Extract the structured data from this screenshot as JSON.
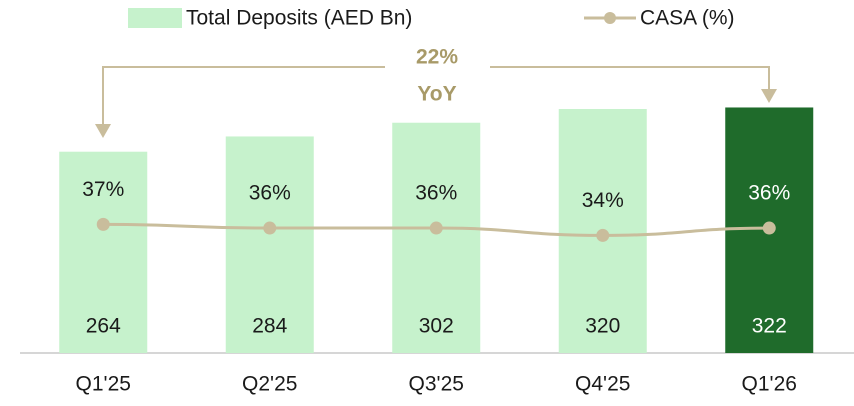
{
  "chart_data": {
    "type": "bar",
    "categories": [
      "Q1'25",
      "Q2'25",
      "Q3'25",
      "Q4'25",
      "Q1'26"
    ],
    "series": [
      {
        "name": "Total Deposits (AED Bn)",
        "type": "bar",
        "color": "#c6f2cc",
        "colors": [
          "#c6f2cc",
          "#c6f2cc",
          "#c6f2cc",
          "#c6f2cc",
          "#1f6b2b"
        ],
        "values": [
          264,
          284,
          302,
          320,
          322
        ]
      },
      {
        "name": "CASA (%)",
        "type": "line",
        "axis": "y2",
        "color": "#c9bd9c",
        "values": [
          37,
          36,
          36,
          34,
          36
        ],
        "value_labels": [
          "37%",
          "36%",
          "36%",
          "34%",
          "36%"
        ]
      }
    ],
    "annotation": [
      "22%",
      "YoY"
    ],
    "annotation_color": "#a89a68",
    "ylim": [
      0,
      400
    ],
    "y2lim": [
      2,
      85
    ]
  }
}
